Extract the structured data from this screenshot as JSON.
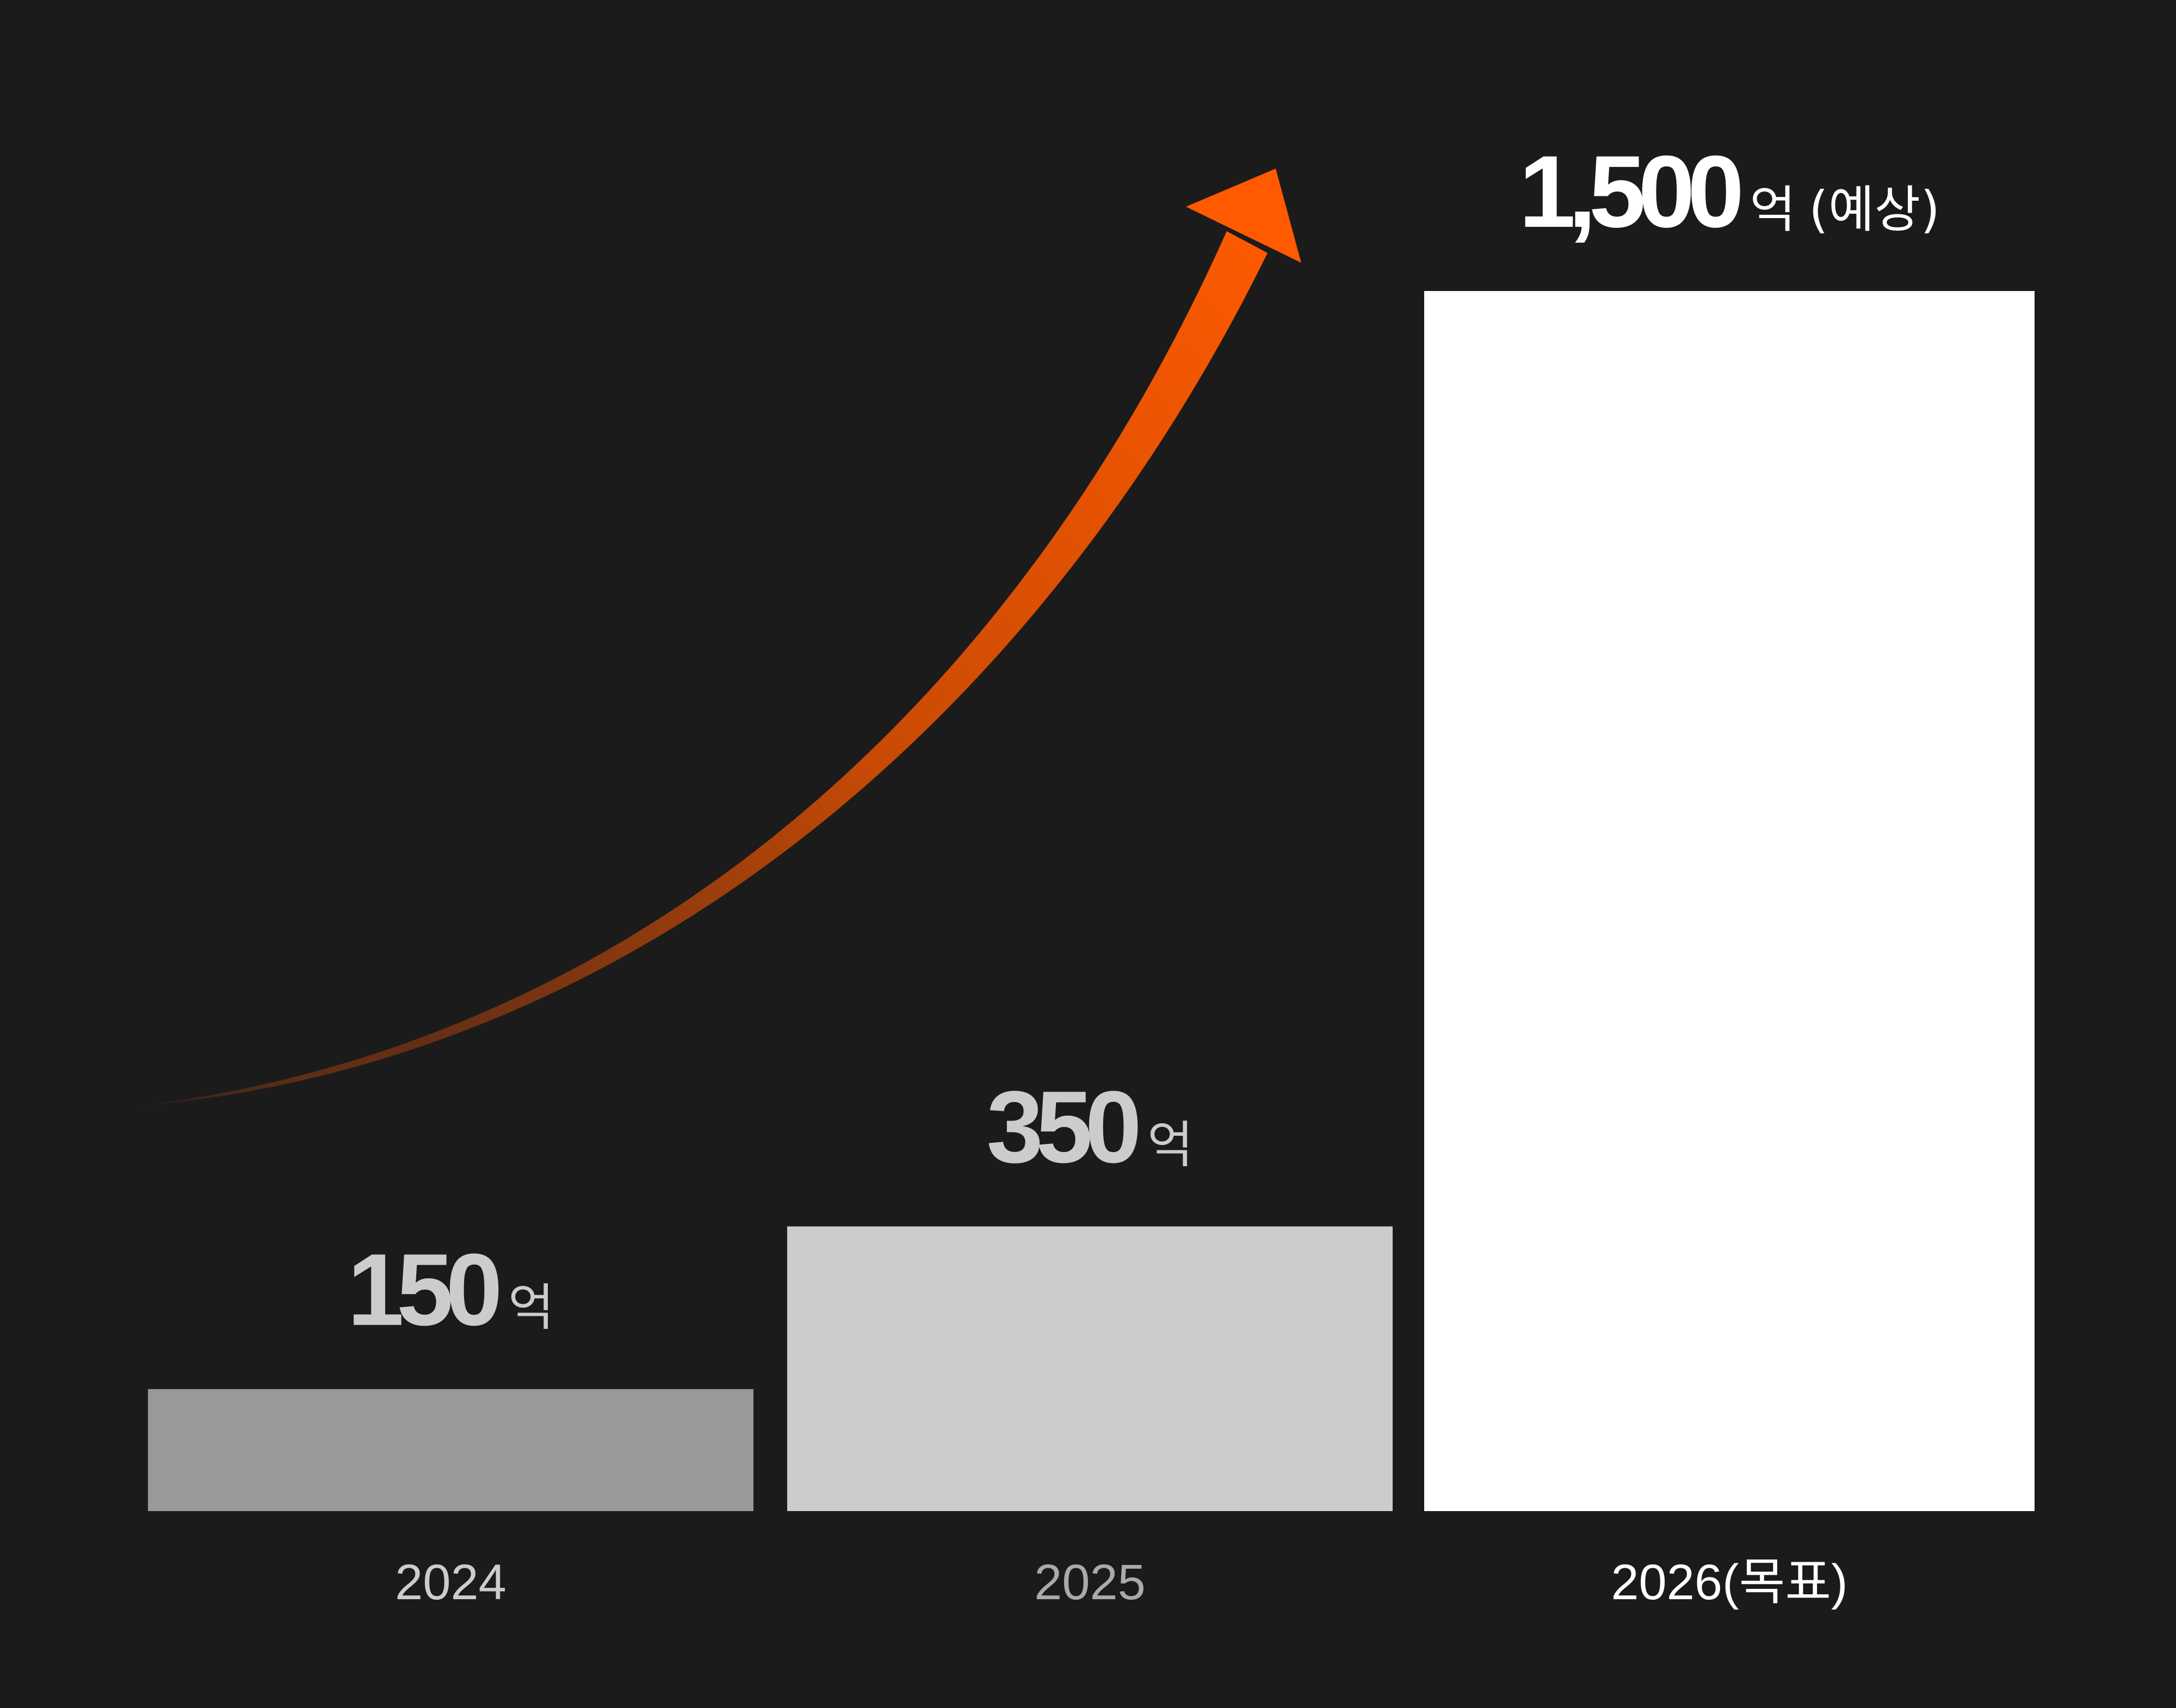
{
  "chart_data": {
    "type": "bar",
    "categories": [
      "2024",
      "2025",
      "2026(목표)"
    ],
    "values": [
      150,
      350,
      1500
    ],
    "value_labels": [
      {
        "number": "150",
        "unit": "억",
        "note": ""
      },
      {
        "number": "350",
        "unit": "억",
        "note": ""
      },
      {
        "number": "1,500",
        "unit": "억",
        "note": "(예상)"
      }
    ],
    "ylim": [
      0,
      1500
    ],
    "grid": false,
    "legend": "none",
    "title": "",
    "xlabel": "",
    "ylabel": "",
    "bar_colors": [
      "#999999",
      "#cccccc",
      "#ffffff"
    ],
    "label_colors": [
      "#cccccc",
      "#cccccc",
      "#ffffff"
    ],
    "category_colors": [
      "#cccccc",
      "#aaaaaa",
      "#ffffff"
    ],
    "trend_arrow": {
      "color": "#ff5a00",
      "direction": "up-right"
    },
    "background": "#1b1b1b"
  }
}
